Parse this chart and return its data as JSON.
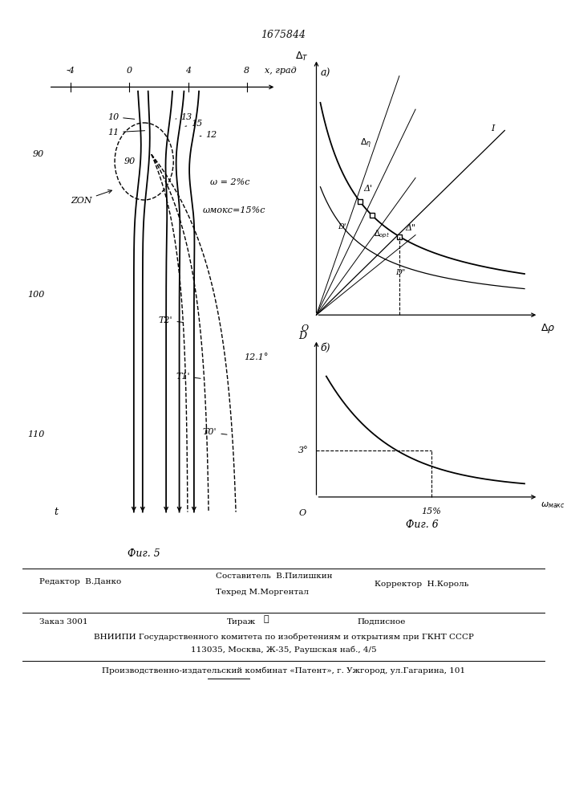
{
  "title": "1675844",
  "black": "#111111",
  "fig5_label": "Фиг. 5",
  "fig6_label": "Фиг. 6",
  "fig5_xlabel": "x, град",
  "omega_text": "ω = 2%с",
  "omega_max_text": "ωмокс=15%с",
  "zon_text": "ZON",
  "angle_label": "12.1°",
  "fig6_a_label": "а)",
  "fig6_b_label": "б)",
  "fig6_3deg": "3°",
  "fig6_15pct": "15%",
  "fig6_omega_max": "ωмокс",
  "editor_line": "Редактор  В.Данко",
  "composer_line": "Составитель  В.Пилишкин",
  "techred_line": "Техред М.Моргентал",
  "corrector_line": "Корректор  Н.Король",
  "order_line": "Заказ 3001",
  "tirazh_line": "Тираж",
  "podpisnoe_line": "Подписное",
  "vnipi_line": "ВНИИПИ Государственного комитета по изобретениям и открытиям при ГКНТ СССР",
  "address_line": "113035, Москва, Ж-35, Раушская наб., 4/5",
  "proizv_line": "Производственно-издательский комбинат «Патент», г. Ужгород, ул.Гагарина, 101"
}
